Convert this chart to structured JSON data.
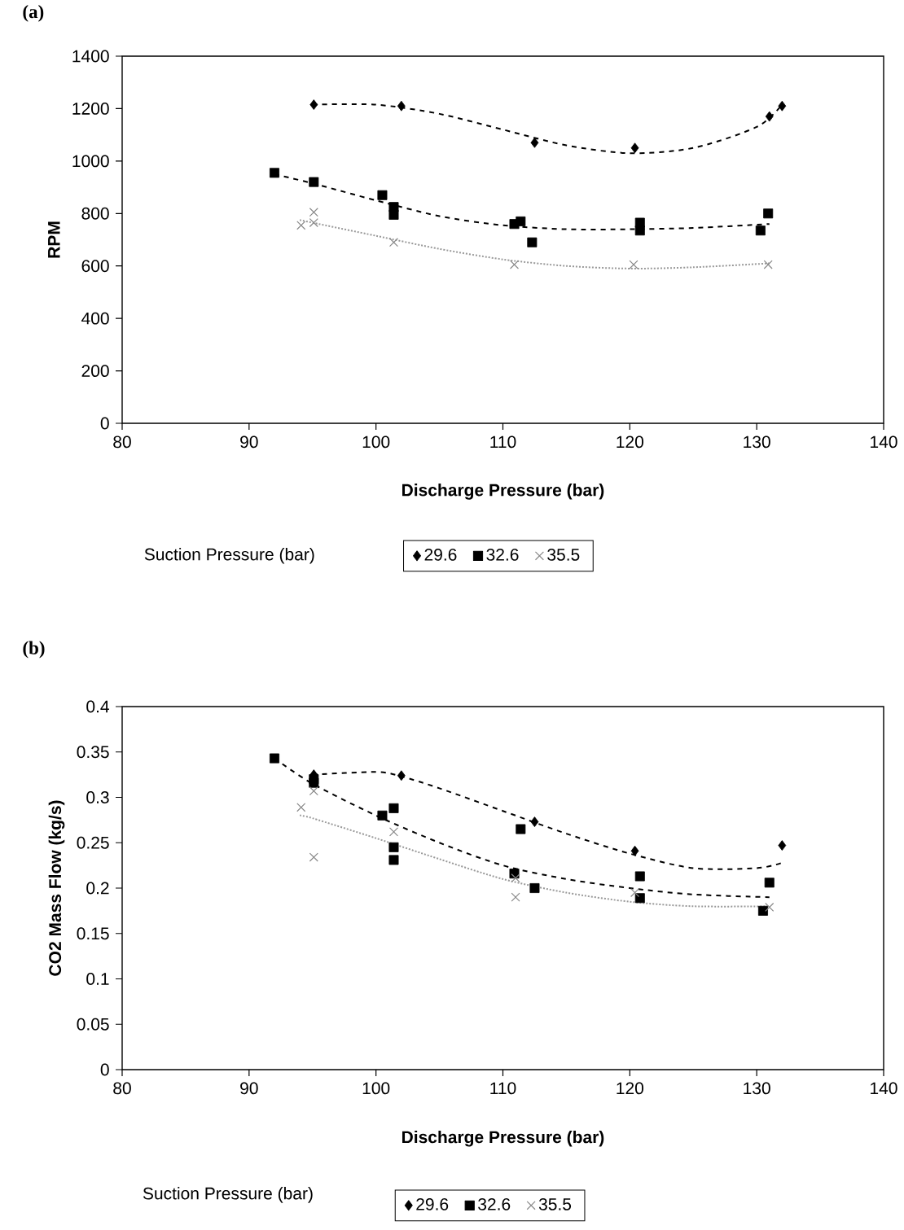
{
  "chart_data": [
    {
      "type": "scatter",
      "title": "(a)",
      "xlabel": "Discharge Pressure (bar)",
      "ylabel": "RPM",
      "legend_title": "Suction Pressure (bar)",
      "legend": "bottom",
      "xlim": [
        80,
        140
      ],
      "xticks": [
        80,
        90,
        100,
        110,
        120,
        130,
        140
      ],
      "ylim": [
        0,
        1400
      ],
      "yticks": [
        0,
        200,
        400,
        600,
        800,
        1000,
        1200,
        1400
      ],
      "series": [
        {
          "name": "29.6",
          "color": "#000000",
          "marker": "diamond",
          "x": [
            95.1,
            102,
            112.5,
            120.4,
            131,
            132
          ],
          "values": [
            1215,
            1210,
            1070,
            1050,
            1170,
            1210
          ]
        },
        {
          "name": "32.6",
          "color": "#000000",
          "marker": "square",
          "x": [
            92,
            95.1,
            100.5,
            101.4,
            101.4,
            110.9,
            111.4,
            112.3,
            120.8,
            120.8,
            130.3,
            130.9
          ],
          "values": [
            955,
            920,
            870,
            825,
            795,
            760,
            770,
            690,
            765,
            735,
            735,
            800
          ]
        },
        {
          "name": "35.5",
          "color": "#888888",
          "marker": "cross",
          "x": [
            94.1,
            95.1,
            95.1,
            101.4,
            110.9,
            120.3,
            130.9
          ],
          "values": [
            755,
            805,
            765,
            690,
            605,
            605,
            605
          ]
        },
        {
          "type": "line",
          "color": "#000000",
          "line_style": "dashed",
          "x": [
            95,
            100,
            105,
            110,
            115,
            120,
            125,
            130,
            132
          ],
          "values": [
            1215,
            1215,
            1180,
            1120,
            1060,
            1030,
            1050,
            1130,
            1215
          ]
        },
        {
          "type": "line",
          "color": "#000000",
          "line_style": "dashed",
          "x": [
            92,
            95,
            100,
            105,
            110,
            115,
            120,
            125,
            131
          ],
          "values": [
            950,
            915,
            850,
            790,
            755,
            740,
            740,
            745,
            760
          ]
        },
        {
          "type": "line",
          "color": "#999999",
          "line_style": "dotted",
          "x": [
            94,
            95,
            100,
            105,
            110,
            115,
            120,
            125,
            131
          ],
          "values": [
            775,
            765,
            715,
            665,
            625,
            600,
            590,
            595,
            610
          ]
        }
      ]
    },
    {
      "type": "scatter",
      "title": "(b)",
      "xlabel": "Discharge Pressure (bar)",
      "ylabel": "CO2 Mass Flow (kg/s)",
      "legend_title": "Suction Pressure (bar)",
      "legend": "bottom",
      "xlim": [
        80,
        140
      ],
      "xticks": [
        80,
        90,
        100,
        110,
        120,
        130,
        140
      ],
      "ylim": [
        0,
        0.4
      ],
      "yticks": [
        0,
        0.05,
        0.1,
        0.15,
        0.2,
        0.25,
        0.3,
        0.35,
        0.4
      ],
      "series": [
        {
          "name": "29.6",
          "color": "#000000",
          "marker": "diamond",
          "x": [
            95.1,
            102,
            112.5,
            120.4,
            132
          ],
          "values": [
            0.325,
            0.324,
            0.273,
            0.241,
            0.247
          ]
        },
        {
          "name": "32.6",
          "color": "#000000",
          "marker": "square",
          "x": [
            92,
            95.1,
            95.1,
            100.5,
            101.4,
            101.4,
            101.4,
            110.9,
            111.4,
            112.5,
            120.8,
            120.8,
            130.5,
            131
          ],
          "values": [
            0.343,
            0.32,
            0.316,
            0.28,
            0.288,
            0.245,
            0.231,
            0.216,
            0.265,
            0.2,
            0.213,
            0.189,
            0.175,
            0.206
          ]
        },
        {
          "name": "35.5",
          "color": "#888888",
          "marker": "cross",
          "x": [
            94.1,
            95.1,
            95.1,
            101.4,
            111,
            111,
            120.4,
            131
          ],
          "values": [
            0.289,
            0.307,
            0.234,
            0.262,
            0.211,
            0.19,
            0.195,
            0.179
          ]
        },
        {
          "type": "line",
          "color": "#000000",
          "line_style": "dashed",
          "x": [
            95,
            100,
            102,
            105,
            110,
            115,
            120,
            125,
            130,
            132
          ],
          "values": [
            0.325,
            0.328,
            0.323,
            0.31,
            0.285,
            0.26,
            0.238,
            0.222,
            0.222,
            0.228
          ]
        },
        {
          "type": "line",
          "color": "#000000",
          "line_style": "dashed",
          "x": [
            92,
            95,
            100,
            105,
            110,
            115,
            120,
            125,
            131
          ],
          "values": [
            0.343,
            0.315,
            0.28,
            0.25,
            0.225,
            0.21,
            0.2,
            0.193,
            0.19
          ]
        },
        {
          "type": "line",
          "color": "#999999",
          "line_style": "dotted",
          "x": [
            94,
            95,
            100,
            105,
            110,
            115,
            120,
            125,
            131
          ],
          "values": [
            0.28,
            0.277,
            0.255,
            0.232,
            0.21,
            0.195,
            0.185,
            0.18,
            0.18
          ]
        }
      ]
    }
  ]
}
